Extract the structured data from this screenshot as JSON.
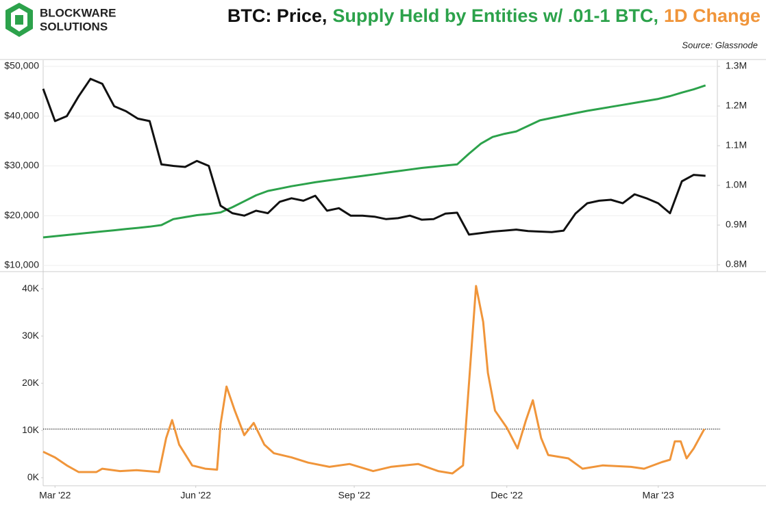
{
  "logo": [
    "BLOCKWARE",
    "SOLUTIONS"
  ],
  "title_parts": [
    {
      "text": "BTC: Price,",
      "color": "#111111"
    },
    {
      "text": "Supply Held by Entities w/ .01-1 BTC,",
      "color": "#2ca24b"
    },
    {
      "text": "1D Change",
      "color": "#f0953a"
    }
  ],
  "source": "Source: Glassnode",
  "chart_data": [
    {
      "type": "line",
      "grid": true,
      "x": [
        0,
        1,
        2,
        3,
        4,
        5,
        6,
        7,
        8,
        9,
        10,
        11,
        12,
        13,
        14,
        15,
        16,
        17,
        18,
        19,
        20,
        21,
        22,
        23,
        24,
        25,
        26,
        27,
        28,
        29,
        30,
        31,
        32,
        33,
        34,
        35,
        36,
        37,
        38,
        39,
        40,
        41,
        42,
        43,
        44,
        45,
        46,
        47,
        48,
        49,
        50,
        51,
        52,
        53,
        54,
        55,
        56
      ],
      "xlim": [
        0,
        57
      ],
      "ylim": [
        8760,
        51240
      ],
      "yticks": [
        {
          "value": 10000,
          "label": "$10,000"
        },
        {
          "value": 20000,
          "label": "$20,000"
        },
        {
          "value": 30000,
          "label": "$30,000"
        },
        {
          "value": 40000,
          "label": "$40,000"
        },
        {
          "value": 50000,
          "label": "$50,000"
        }
      ],
      "y2lim": [
        782800,
        1315500
      ],
      "y2ticks": [
        {
          "value": 800000,
          "label": "0.8M"
        },
        {
          "value": 900000,
          "label": "0.9M"
        },
        {
          "value": 1000000,
          "label": "1.0M"
        },
        {
          "value": 1100000,
          "label": "1.1M"
        },
        {
          "value": 1200000,
          "label": "1.2M"
        },
        {
          "value": 1300000,
          "label": "1.3M"
        }
      ],
      "series": [
        {
          "color": "#111111",
          "axis": "y",
          "values": [
            45500,
            39000,
            40000,
            44000,
            47500,
            46500,
            42000,
            41000,
            39500,
            39000,
            30300,
            30000,
            29800,
            31000,
            30000,
            22000,
            20500,
            20000,
            21000,
            20500,
            22800,
            23500,
            23000,
            24000,
            21000,
            21500,
            20000,
            20000,
            19800,
            19300,
            19500,
            20000,
            19200,
            19300,
            20400,
            20600,
            16200,
            16500,
            16800,
            17000,
            17200,
            16900,
            16800,
            16700,
            17000,
            20400,
            22500,
            23000,
            23200,
            22500,
            24300,
            23500,
            22500,
            20500,
            26900,
            28200,
            28000
          ]
        },
        {
          "color": "#2ca24b",
          "axis": "y2",
          "values": [
            869000,
            872000,
            875000,
            878000,
            881000,
            884000,
            887000,
            890000,
            893000,
            896000,
            900000,
            915000,
            920000,
            925000,
            928000,
            932000,
            945000,
            960000,
            975000,
            986000,
            992000,
            998000,
            1003000,
            1008000,
            1012000,
            1016000,
            1020000,
            1024000,
            1028000,
            1032000,
            1036000,
            1040000,
            1044000,
            1047000,
            1050000,
            1053000,
            1080000,
            1105000,
            1122000,
            1130000,
            1136000,
            1150000,
            1164000,
            1170000,
            1176000,
            1182000,
            1188000,
            1193000,
            1198000,
            1203000,
            1208000,
            1213000,
            1218000,
            1225000,
            1234000,
            1242000,
            1252000
          ]
        }
      ]
    },
    {
      "type": "line",
      "x": [
        0,
        1.0,
        2.0,
        3.0,
        4.5,
        5.0,
        6.5,
        7.9,
        9.8,
        10.4,
        10.9,
        11.5,
        12.6,
        13.7,
        14.7,
        15.0,
        15.5,
        16.2,
        17.0,
        17.8,
        18.7,
        19.5,
        21.0,
        22.4,
        24.2,
        25.9,
        27.9,
        29.4,
        31.7,
        33.4,
        34.6,
        35.5,
        36.0,
        36.6,
        37.2,
        37.6,
        38.2,
        39.2,
        40.1,
        40.8,
        41.4,
        42.1,
        42.7,
        44.4,
        45.6,
        47.3,
        49.7,
        50.8,
        52.3,
        53.0,
        53.4,
        53.9,
        54.4,
        55.0,
        55.9
      ],
      "xlim": [
        0,
        57
      ],
      "xticks": [
        {
          "value": 1.0,
          "label": "Mar '22"
        },
        {
          "value": 12.9,
          "label": "Jun '22"
        },
        {
          "value": 26.3,
          "label": "Sep '22"
        },
        {
          "value": 39.2,
          "label": "Dec '22"
        },
        {
          "value": 52.0,
          "label": "Mar '23"
        }
      ],
      "ylim": [
        -1700,
        43200
      ],
      "yticks": [
        {
          "value": 0,
          "label": "0K"
        },
        {
          "value": 10000,
          "label": "10K"
        },
        {
          "value": 20000,
          "label": "20K"
        },
        {
          "value": 30000,
          "label": "30K"
        },
        {
          "value": 40000,
          "label": "40K"
        }
      ],
      "hline": 10300,
      "series": [
        {
          "color": "#f0953a",
          "values": [
            5500,
            4300,
            2600,
            1200,
            1200,
            1900,
            1400,
            1600,
            1200,
            8400,
            12200,
            7000,
            2600,
            1900,
            1700,
            11300,
            19300,
            14200,
            9000,
            11600,
            7000,
            5200,
            4300,
            3200,
            2300,
            2900,
            1400,
            2300,
            2900,
            1400,
            900,
            2600,
            20000,
            40600,
            33000,
            22200,
            14200,
            10600,
            6200,
            12000,
            16400,
            8400,
            4800,
            4100,
            1900,
            2600,
            2300,
            1900,
            3300,
            3800,
            7700,
            7700,
            4100,
            6200,
            10300
          ]
        }
      ]
    }
  ]
}
